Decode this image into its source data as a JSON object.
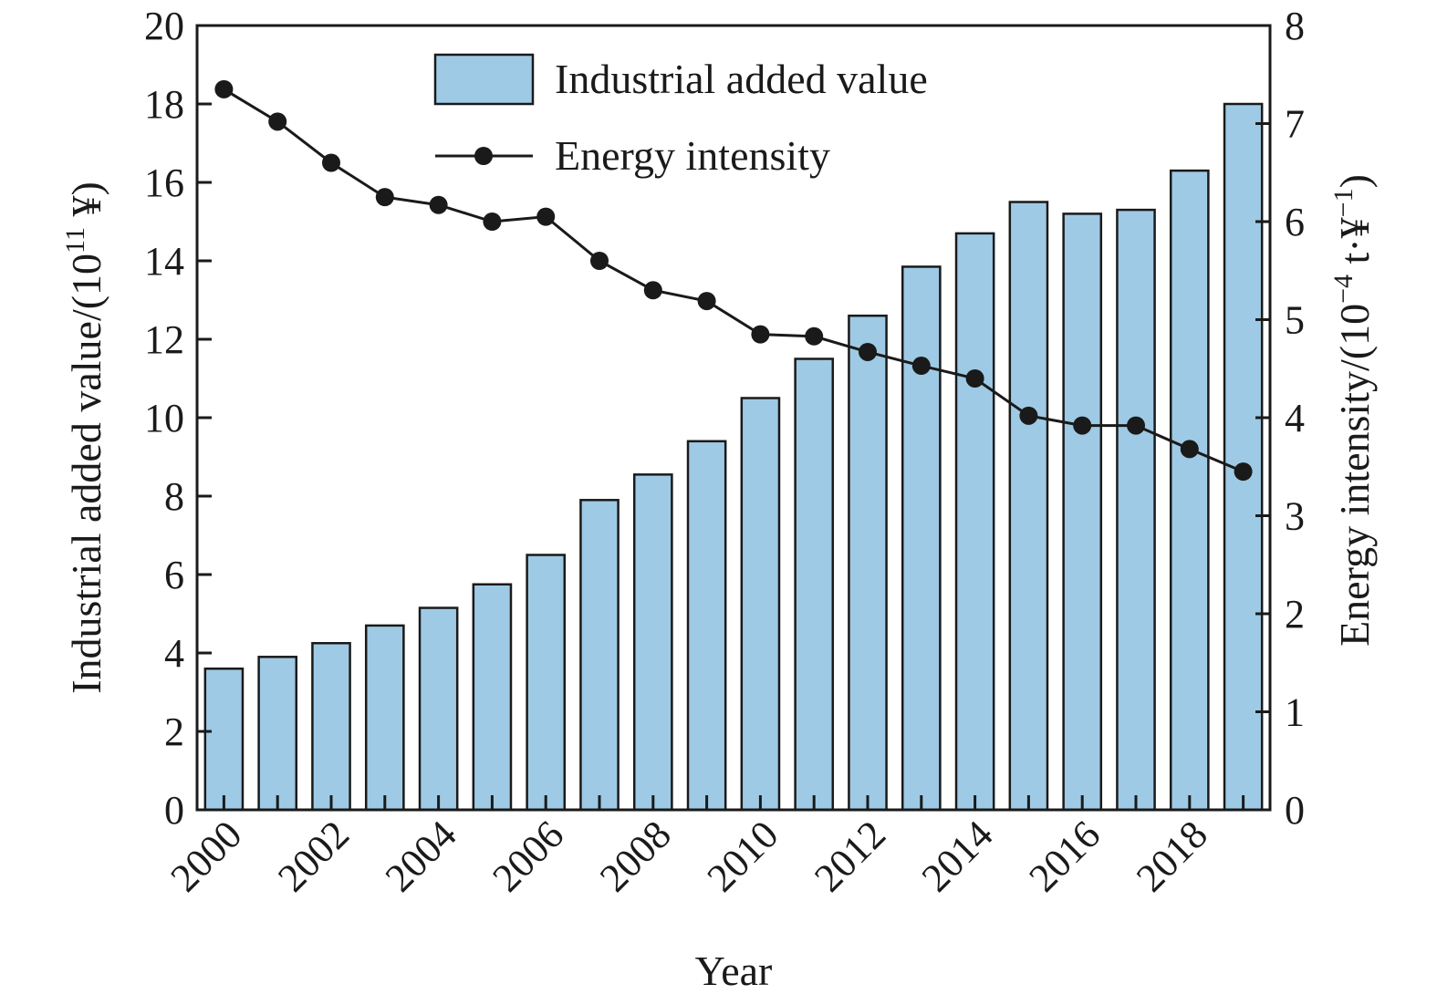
{
  "chart_data": {
    "type": "bar",
    "xlabel": "Year",
    "ylabel_left_parts": [
      "Industrial added value/(10",
      "11",
      " ¥)"
    ],
    "ylabel_right_parts": [
      "Energy intensity/(10",
      "−4",
      " t·¥",
      "−1",
      ")"
    ],
    "ylim_left": [
      0,
      20
    ],
    "ylim_right": [
      0,
      8
    ],
    "yticks_left": [
      "0",
      "2",
      "4",
      "6",
      "8",
      "10",
      "12",
      "14",
      "16",
      "18",
      "20"
    ],
    "yticks_right": [
      "0",
      "1",
      "2",
      "3",
      "4",
      "5",
      "6",
      "7",
      "8"
    ],
    "x_tick_labels": [
      "2000",
      "2002",
      "2004",
      "2006",
      "2008",
      "2010",
      "2012",
      "2014",
      "2016",
      "2018"
    ],
    "categories": [
      "2000",
      "2001",
      "2002",
      "2003",
      "2004",
      "2005",
      "2006",
      "2007",
      "2008",
      "2009",
      "2010",
      "2011",
      "2012",
      "2013",
      "2014",
      "2015",
      "2016",
      "2017",
      "2018",
      "2019"
    ],
    "series": [
      {
        "name": "Industrial added value",
        "type": "bar",
        "axis": "left",
        "color": "#9ecae5",
        "values": [
          3.6,
          3.9,
          4.25,
          4.7,
          5.15,
          5.75,
          6.5,
          7.9,
          8.55,
          9.4,
          10.5,
          11.5,
          12.6,
          13.85,
          14.7,
          15.5,
          15.2,
          15.3,
          16.3,
          18.0
        ]
      },
      {
        "name": "Energy intensity",
        "type": "line",
        "axis": "right",
        "color": "#1a1a1a",
        "values": [
          7.35,
          7.02,
          6.6,
          6.25,
          6.17,
          6.0,
          6.05,
          5.6,
          5.3,
          5.19,
          4.85,
          4.83,
          4.67,
          4.53,
          4.4,
          4.02,
          3.92,
          3.92,
          3.68,
          3.45
        ]
      }
    ],
    "legend_position": "top-center"
  }
}
